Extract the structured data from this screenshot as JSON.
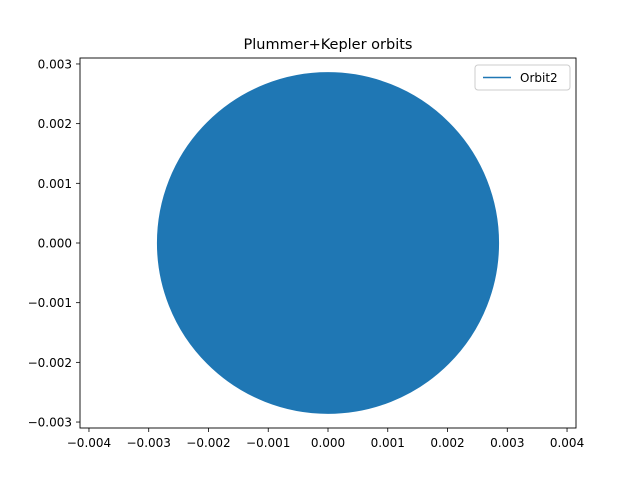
{
  "chart_data": {
    "type": "line",
    "title": "Plummer+Kepler orbits",
    "xlabel": "",
    "ylabel": "",
    "xlim": [
      -0.00415,
      0.00415
    ],
    "ylim": [
      -0.0031,
      0.0031
    ],
    "xticks": [
      -0.004,
      -0.003,
      -0.002,
      -0.001,
      0.0,
      0.001,
      0.002,
      0.003,
      0.004
    ],
    "xtick_labels": [
      "−0.004",
      "−0.003",
      "−0.002",
      "−0.001",
      "0.000",
      "0.001",
      "0.002",
      "0.003",
      "0.004"
    ],
    "yticks": [
      -0.003,
      -0.002,
      -0.001,
      0.0,
      0.001,
      0.002,
      0.003
    ],
    "ytick_labels": [
      "−0.003",
      "−0.002",
      "−0.001",
      "0.000",
      "0.001",
      "0.002",
      "0.003"
    ],
    "grid": false,
    "legend_position": "top-right",
    "series": [
      {
        "name": "Orbit2",
        "color": "#1f77b4",
        "shape": "filled circle of overlapping orbit traces",
        "center": [
          0.0,
          0.0
        ],
        "radius": 0.00285
      }
    ]
  }
}
